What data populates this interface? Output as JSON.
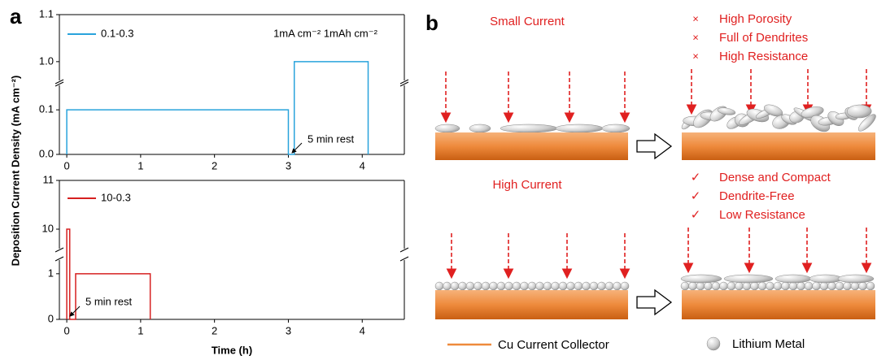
{
  "chart_data": [
    {
      "type": "line",
      "panel_label": "a",
      "y_label": "Deposition Current Density (mA cm⁻²)",
      "annotations": [
        "1mA cm⁻² 1mAh cm⁻²",
        "5 min rest"
      ],
      "series": [
        {
          "name": "0.1-0.3",
          "color": "#29a3dc",
          "x": [
            0,
            0,
            3,
            3,
            3.08,
            3.08,
            4.08,
            4.08
          ],
          "values": [
            0,
            0.1,
            0.1,
            0,
            0,
            1,
            1,
            0
          ]
        }
      ],
      "xlim": [
        -0.1,
        4.57
      ],
      "xticks": [
        0,
        1,
        2,
        3,
        4
      ],
      "ylim": [
        0,
        1.1
      ],
      "y_break": [
        0.155,
        0.96
      ],
      "yticks": [
        {
          "value": 0,
          "label": "0.0"
        },
        0.1,
        {
          "value": 1,
          "label": "1.0"
        },
        1.1
      ]
    },
    {
      "type": "line",
      "x_label": "Time (h)",
      "annotations": [
        "5 min rest"
      ],
      "series": [
        {
          "name": "10-0.3",
          "color": "#d62020",
          "x": [
            0,
            0,
            0.04,
            0.04,
            0.12,
            0.12,
            1.13,
            1.13
          ],
          "values": [
            0,
            10,
            10,
            0,
            0,
            1,
            1,
            0
          ]
        }
      ],
      "xlim": [
        -0.1,
        4.57
      ],
      "xticks": [
        0,
        1,
        2,
        3,
        4
      ],
      "ylim": [
        0,
        11
      ],
      "y_break": [
        1.3,
        9.6
      ],
      "yticks": [
        0,
        1,
        10,
        11
      ]
    }
  ],
  "schematic": {
    "label": "b",
    "top": {
      "condition": "Small Current",
      "results": [
        {
          "mark": "×",
          "text": "High Porosity"
        },
        {
          "mark": "×",
          "text": "Full of Dendrites"
        },
        {
          "mark": "×",
          "text": "High Resistance"
        }
      ]
    },
    "bottom": {
      "condition": "High Current",
      "results": [
        {
          "mark": "✓",
          "text": "Dense and Compact"
        },
        {
          "mark": "✓",
          "text": "Dendrite-Free"
        },
        {
          "mark": "✓",
          "text": "Low Resistance"
        }
      ]
    },
    "legend": [
      "Cu Current Collector",
      "Lithium Metal"
    ]
  }
}
